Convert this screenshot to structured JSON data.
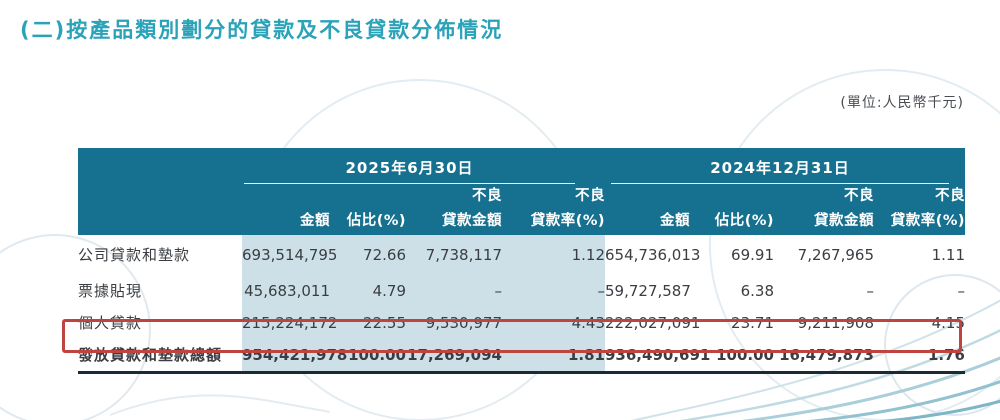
{
  "page": {
    "title": "(二)按產品類別劃分的貸款及不良貸款分佈情況",
    "unit_note": "(單位:人民幣千元)"
  },
  "colors": {
    "title_teal": "#2aa2b8",
    "header_bg": "#16708f",
    "column_tint": "#cde0e8",
    "highlight_red": "#bf4440",
    "body_text": "#3a3e42"
  },
  "table": {
    "groups": [
      {
        "date": "2025年6月30日",
        "sub": [
          "金額",
          "佔比(%)",
          "不良\n貸款金額",
          "不良\n貸款率(%)"
        ]
      },
      {
        "date": "2024年12月31日",
        "sub": [
          "金額",
          "佔比(%)",
          "不良\n貸款金額",
          "不良\n貸款率(%)"
        ]
      }
    ],
    "rows": [
      {
        "label": "公司貸款和墊款",
        "values": [
          "693,514,795",
          "72.66",
          "7,738,117",
          "1.12",
          "654,736,013",
          "69.91",
          "7,267,965",
          "1.11"
        ],
        "highlight": false,
        "bold": false
      },
      {
        "label": "票據貼現",
        "values": [
          "45,683,011",
          "4.79",
          "–",
          "–",
          "59,727,587",
          "6.38",
          "–",
          "–"
        ],
        "highlight": false,
        "bold": false
      },
      {
        "label": "個人貸款",
        "values": [
          "215,224,172",
          "22.55",
          "9,530,977",
          "4.43",
          "222,027,091",
          "23.71",
          "9,211,908",
          "4.15"
        ],
        "highlight": true,
        "bold": false
      },
      {
        "label": "發放貸款和墊款總額",
        "values": [
          "954,421,978",
          "100.00",
          "17,269,094",
          "1.81",
          "936,490,691",
          "100.00",
          "16,479,873",
          "1.76"
        ],
        "highlight": false,
        "bold": true
      }
    ]
  }
}
